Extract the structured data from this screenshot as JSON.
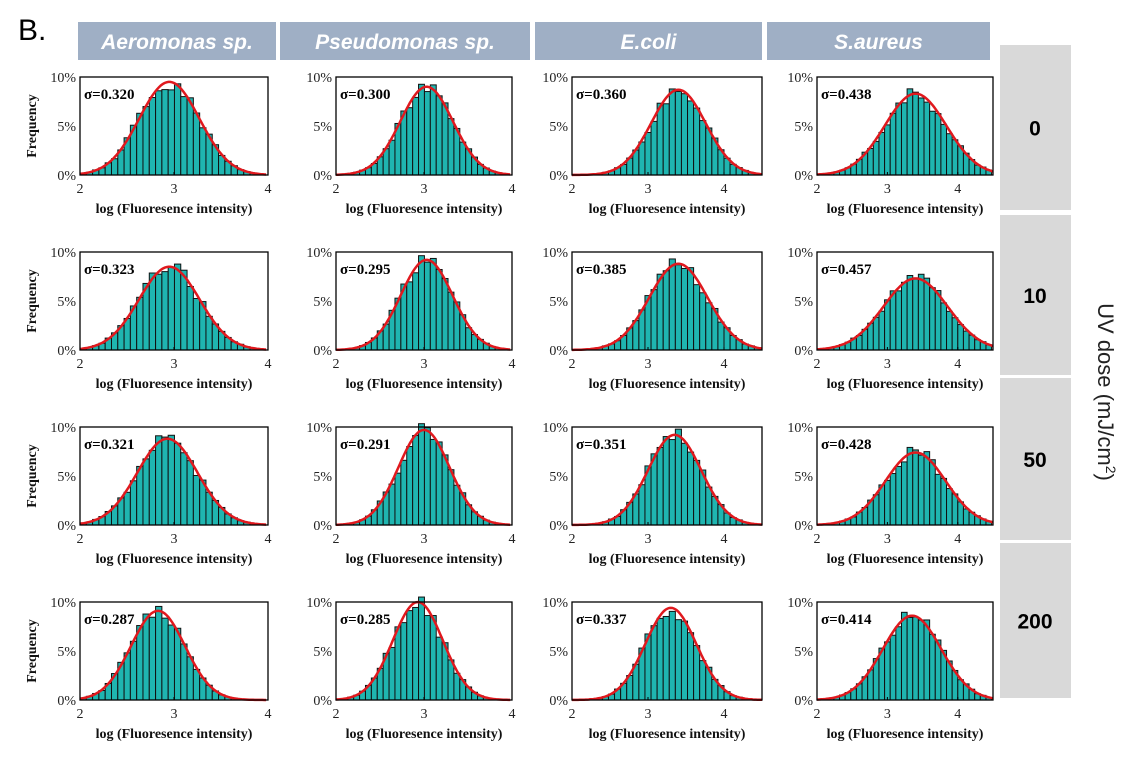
{
  "panel_label": "B.",
  "columns": [
    "Aeromonas sp.",
    "Pseudomonas sp.",
    "E.coli",
    "S.aureus"
  ],
  "rows": [
    "0",
    "10",
    "50",
    "200"
  ],
  "row_axis_label": "UV dose (mJ/cm",
  "row_axis_label_sup": "2",
  "row_axis_label_end": ")",
  "colors": {
    "bar": "#1fb5b0",
    "fit": "#e0191e",
    "header": "#9fafc5",
    "dose_box": "#d9d9d9"
  },
  "chart_data": {
    "type": "bar",
    "subtype": "histogram-with-gaussian-fit",
    "xlabel": "log (Fluoresence intensity)",
    "ylabel": "Frequency",
    "ylim": [
      0,
      10
    ],
    "yticks": [
      "0%",
      "5%",
      "10%"
    ],
    "xlim_by_column": [
      [
        2,
        4
      ],
      [
        2,
        4
      ],
      [
        2,
        4.5
      ],
      [
        2,
        4.5
      ]
    ],
    "xticks_by_column": [
      [
        "2",
        "3",
        "4"
      ],
      [
        "2",
        "3",
        "4"
      ],
      [
        "2",
        "3",
        "4"
      ],
      [
        "2",
        "3",
        "4"
      ]
    ],
    "panels": [
      [
        {
          "sigma": "σ=0.320",
          "mean": 2.95,
          "peak": 9.5
        },
        {
          "sigma": "σ=0.300",
          "mean": 3.03,
          "peak": 9.0
        },
        {
          "sigma": "σ=0.360",
          "mean": 3.4,
          "peak": 8.7
        },
        {
          "sigma": "σ=0.438",
          "mean": 3.4,
          "peak": 8.3
        }
      ],
      [
        {
          "sigma": "σ=0.323",
          "mean": 2.95,
          "peak": 8.5
        },
        {
          "sigma": "σ=0.295",
          "mean": 3.03,
          "peak": 9.2
        },
        {
          "sigma": "σ=0.385",
          "mean": 3.4,
          "peak": 8.8
        },
        {
          "sigma": "σ=0.457",
          "mean": 3.4,
          "peak": 7.3
        }
      ],
      [
        {
          "sigma": "σ=0.321",
          "mean": 2.93,
          "peak": 8.8
        },
        {
          "sigma": "σ=0.291",
          "mean": 3.0,
          "peak": 9.7
        },
        {
          "sigma": "σ=0.351",
          "mean": 3.35,
          "peak": 9.2
        },
        {
          "sigma": "σ=0.428",
          "mean": 3.4,
          "peak": 7.4
        }
      ],
      [
        {
          "sigma": "σ=0.287",
          "mean": 2.83,
          "peak": 9.1
        },
        {
          "sigma": "σ=0.285",
          "mean": 2.93,
          "peak": 10.0
        },
        {
          "sigma": "σ=0.337",
          "mean": 3.3,
          "peak": 9.4
        },
        {
          "sigma": "σ=0.414",
          "mean": 3.35,
          "peak": 8.6
        }
      ]
    ]
  }
}
